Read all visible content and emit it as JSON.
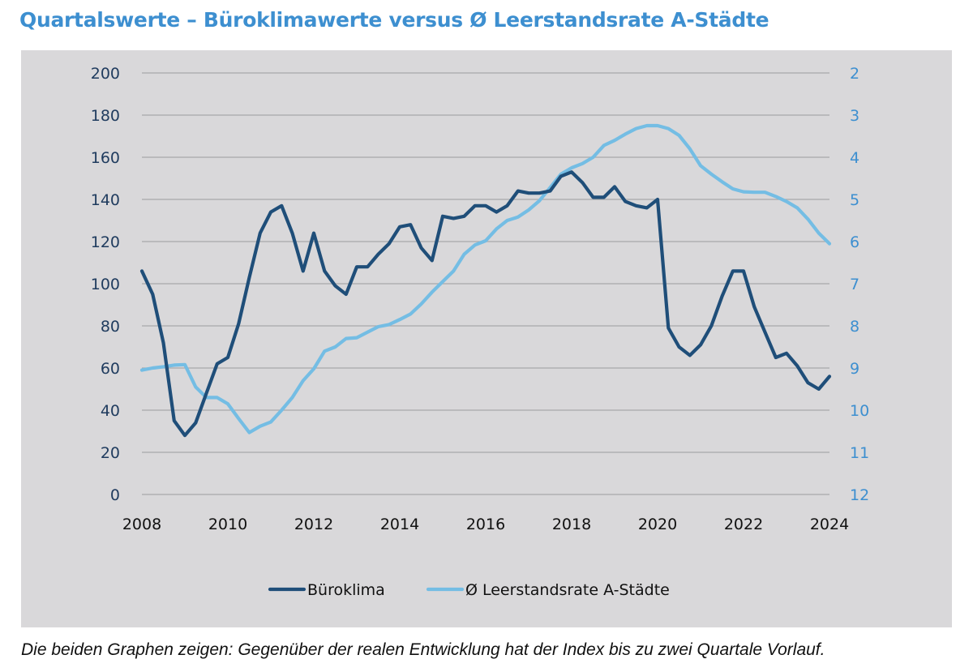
{
  "title": "Quartalswerte – Büroklimawerte versus Ø Leerstandsrate A-Städte",
  "caption": "Die beiden Graphen zeigen: Gegenüber der realen Entwicklung hat der Index bis zu zwei Quartale Vorlauf.",
  "chart_data": {
    "type": "line",
    "x_ticks": [
      "2008",
      "2010",
      "2012",
      "2014",
      "2016",
      "2018",
      "2020",
      "2022",
      "2024"
    ],
    "xlim": [
      2008,
      2024
    ],
    "y_left": {
      "lim": [
        0,
        200
      ],
      "ticks": [
        "0",
        "20",
        "40",
        "60",
        "80",
        "100",
        "120",
        "140",
        "160",
        "180",
        "200"
      ]
    },
    "y_right": {
      "lim": [
        2,
        12
      ],
      "inverted": true,
      "ticks": [
        "2",
        "3",
        "4",
        "5",
        "6",
        "7",
        "8",
        "9",
        "10",
        "11",
        "12"
      ]
    },
    "legend_position": "bottom",
    "grid": true,
    "series": [
      {
        "name": "Büroklima",
        "axis": "left",
        "color": "#1f4e79",
        "x": [
          2008.0,
          2008.25,
          2008.5,
          2008.75,
          2009.0,
          2009.25,
          2009.5,
          2009.75,
          2010.0,
          2010.25,
          2010.5,
          2010.75,
          2011.0,
          2011.25,
          2011.5,
          2011.75,
          2012.0,
          2012.25,
          2012.5,
          2012.75,
          2013.0,
          2013.25,
          2013.5,
          2013.75,
          2014.0,
          2014.25,
          2014.5,
          2014.75,
          2015.0,
          2015.25,
          2015.5,
          2015.75,
          2016.0,
          2016.25,
          2016.5,
          2016.75,
          2017.0,
          2017.25,
          2017.5,
          2017.75,
          2018.0,
          2018.25,
          2018.5,
          2018.75,
          2019.0,
          2019.25,
          2019.5,
          2019.75,
          2020.0,
          2020.25,
          2020.5,
          2020.75,
          2021.0,
          2021.25,
          2021.5,
          2021.75,
          2022.0,
          2022.25,
          2022.5,
          2022.75,
          2023.0,
          2023.25,
          2023.5,
          2023.75,
          2024.0
        ],
        "values": [
          106,
          95,
          72,
          35,
          28,
          34,
          48,
          62,
          65,
          81,
          103,
          124,
          134,
          137,
          124,
          106,
          124,
          106,
          99,
          95,
          108,
          108,
          114,
          119,
          127,
          128,
          117,
          111,
          132,
          131,
          132,
          137,
          137,
          134,
          137,
          144,
          143,
          143,
          144,
          151,
          153,
          148,
          141,
          141,
          146,
          139,
          137,
          136,
          140,
          79,
          70,
          66,
          71,
          80,
          94,
          106,
          106,
          89,
          77,
          65,
          67,
          61,
          53,
          50,
          56
        ]
      },
      {
        "name": "Ø Leerstandsrate A-Städte",
        "axis": "right",
        "color": "#74bde4",
        "x": [
          2008.0,
          2008.25,
          2008.5,
          2008.75,
          2009.0,
          2009.25,
          2009.5,
          2009.75,
          2010.0,
          2010.25,
          2010.5,
          2010.75,
          2011.0,
          2011.25,
          2011.5,
          2011.75,
          2012.0,
          2012.25,
          2012.5,
          2012.75,
          2013.0,
          2013.25,
          2013.5,
          2013.75,
          2014.0,
          2014.25,
          2014.5,
          2014.75,
          2015.0,
          2015.25,
          2015.5,
          2015.75,
          2016.0,
          2016.25,
          2016.5,
          2016.75,
          2017.0,
          2017.25,
          2017.5,
          2017.75,
          2018.0,
          2018.25,
          2018.5,
          2018.75,
          2019.0,
          2019.25,
          2019.5,
          2019.75,
          2020.0,
          2020.25,
          2020.5,
          2020.75,
          2021.0,
          2021.25,
          2021.5,
          2021.75,
          2022.0,
          2022.25,
          2022.5,
          2022.75,
          2023.0,
          2023.25,
          2023.5,
          2023.75,
          2024.0
        ],
        "values": [
          9.05,
          9.0,
          8.97,
          8.93,
          8.92,
          9.45,
          9.7,
          9.7,
          9.85,
          10.2,
          10.53,
          10.38,
          10.28,
          10.0,
          9.7,
          9.3,
          9.02,
          8.6,
          8.5,
          8.3,
          8.28,
          8.15,
          8.02,
          7.97,
          7.85,
          7.72,
          7.48,
          7.2,
          6.95,
          6.7,
          6.3,
          6.08,
          5.98,
          5.7,
          5.5,
          5.42,
          5.25,
          5.03,
          4.72,
          4.4,
          4.25,
          4.15,
          4.0,
          3.72,
          3.6,
          3.45,
          3.32,
          3.25,
          3.25,
          3.32,
          3.48,
          3.8,
          4.2,
          4.4,
          4.58,
          4.75,
          4.82,
          4.83,
          4.83,
          4.93,
          5.05,
          5.2,
          5.47,
          5.8,
          6.05
        ]
      }
    ]
  }
}
